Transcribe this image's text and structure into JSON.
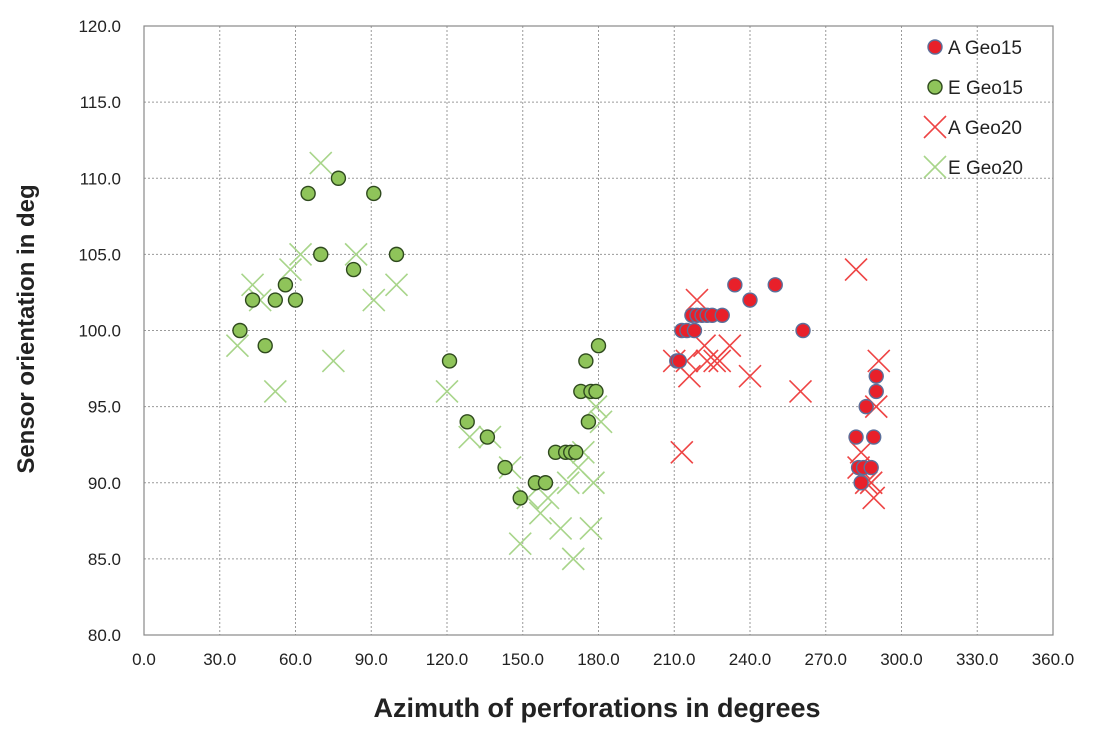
{
  "chart_data": {
    "type": "scatter",
    "xlabel": "Azimuth of perforations in degrees",
    "ylabel": "Sensor orientation in deg",
    "xlim": [
      0,
      360
    ],
    "ylim": [
      80,
      120
    ],
    "xticks": [
      "0.0",
      "30.0",
      "60.0",
      "90.0",
      "120.0",
      "150.0",
      "180.0",
      "210.0",
      "240.0",
      "270.0",
      "300.0",
      "330.0",
      "360.0"
    ],
    "yticks": [
      "80.0",
      "85.0",
      "90.0",
      "95.0",
      "100.0",
      "105.0",
      "110.0",
      "115.0",
      "120.0"
    ],
    "grid": true,
    "legend_position": "top-right",
    "series": [
      {
        "name": "A Geo15",
        "marker": "circle",
        "color": "#e8202a",
        "points": [
          [
            211,
            98
          ],
          [
            212,
            98
          ],
          [
            213,
            100
          ],
          [
            215,
            100
          ],
          [
            217,
            101
          ],
          [
            218,
            100
          ],
          [
            219,
            101
          ],
          [
            221,
            101
          ],
          [
            223,
            101
          ],
          [
            225,
            101
          ],
          [
            229,
            101
          ],
          [
            234,
            103
          ],
          [
            240,
            102
          ],
          [
            250,
            103
          ],
          [
            261,
            100
          ],
          [
            282,
            93
          ],
          [
            283,
            91
          ],
          [
            284,
            90
          ],
          [
            285,
            91
          ],
          [
            286,
            95
          ],
          [
            288,
            91
          ],
          [
            289,
            93
          ],
          [
            290,
            96
          ],
          [
            290,
            97
          ]
        ]
      },
      {
        "name": "E Geo15",
        "marker": "circle",
        "color": "#8fc45a",
        "points": [
          [
            38,
            100
          ],
          [
            43,
            102
          ],
          [
            48,
            99
          ],
          [
            52,
            102
          ],
          [
            56,
            103
          ],
          [
            60,
            102
          ],
          [
            65,
            109
          ],
          [
            70,
            105
          ],
          [
            77,
            110
          ],
          [
            83,
            104
          ],
          [
            91,
            109
          ],
          [
            100,
            105
          ],
          [
            121,
            98
          ],
          [
            128,
            94
          ],
          [
            136,
            93
          ],
          [
            143,
            91
          ],
          [
            149,
            89
          ],
          [
            155,
            90
          ],
          [
            159,
            90
          ],
          [
            163,
            92
          ],
          [
            167,
            92
          ],
          [
            169,
            92
          ],
          [
            171,
            92
          ],
          [
            173,
            96
          ],
          [
            175,
            98
          ],
          [
            176,
            94
          ],
          [
            177,
            96
          ],
          [
            179,
            96
          ],
          [
            180,
            99
          ]
        ]
      },
      {
        "name": "A Geo20",
        "marker": "x",
        "color": "#ee4444",
        "points": [
          [
            210,
            98
          ],
          [
            213,
            92
          ],
          [
            215,
            98
          ],
          [
            216,
            97
          ],
          [
            219,
            102
          ],
          [
            222,
            99
          ],
          [
            223,
            98
          ],
          [
            226,
            98
          ],
          [
            228,
            98
          ],
          [
            232,
            99
          ],
          [
            240,
            97
          ],
          [
            260,
            96
          ],
          [
            282,
            104
          ],
          [
            283,
            91
          ],
          [
            284,
            92
          ],
          [
            286,
            90
          ],
          [
            288,
            90
          ],
          [
            289,
            89
          ],
          [
            290,
            95
          ],
          [
            291,
            98
          ]
        ]
      },
      {
        "name": "E Geo20",
        "marker": "x",
        "color": "#a8d58a",
        "points": [
          [
            37,
            99
          ],
          [
            43,
            103
          ],
          [
            46,
            102
          ],
          [
            52,
            96
          ],
          [
            58,
            104
          ],
          [
            62,
            105
          ],
          [
            70,
            111
          ],
          [
            75,
            98
          ],
          [
            84,
            105
          ],
          [
            91,
            102
          ],
          [
            100,
            103
          ],
          [
            120,
            96
          ],
          [
            129,
            93
          ],
          [
            137,
            93
          ],
          [
            145,
            91
          ],
          [
            149,
            86
          ],
          [
            152,
            89
          ],
          [
            157,
            88
          ],
          [
            160,
            89
          ],
          [
            165,
            87
          ],
          [
            168,
            90
          ],
          [
            170,
            85
          ],
          [
            172,
            91
          ],
          [
            174,
            92
          ],
          [
            177,
            87
          ],
          [
            178,
            90
          ],
          [
            179,
            95
          ],
          [
            181,
            94
          ]
        ]
      }
    ]
  }
}
